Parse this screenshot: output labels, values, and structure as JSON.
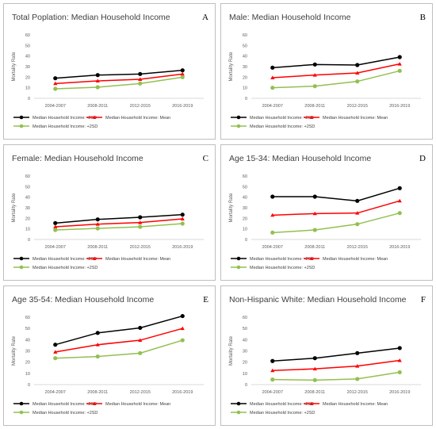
{
  "series_styles": [
    {
      "color": "#000000",
      "marker": "circle"
    },
    {
      "color": "#ff0000",
      "marker": "triangle"
    },
    {
      "color": "#92c050",
      "marker": "circle"
    }
  ],
  "chart_data": [
    {
      "type": "line",
      "letter": "A",
      "title": "Total Poplation: Median Household Income",
      "ylabel": "Mortality Rate",
      "categories": [
        "2004-2007",
        "2008-2011",
        "2012-2015",
        "2016-2019"
      ],
      "ylim": [
        0,
        60
      ],
      "yticks": [
        0,
        10,
        20,
        30,
        40,
        50,
        60
      ],
      "grid": false,
      "series": [
        {
          "name": "Median Household Income: -2SD",
          "values": [
            19,
            22,
            23,
            26.5
          ]
        },
        {
          "name": "Median Household Income: Mean",
          "values": [
            14,
            16.5,
            18,
            23
          ]
        },
        {
          "name": "Median Household Income: +2SD",
          "values": [
            9,
            10.5,
            14,
            20
          ]
        }
      ]
    },
    {
      "type": "line",
      "letter": "B",
      "title": "Male: Median Household Income",
      "ylabel": "Mortality Rate",
      "categories": [
        "2004-2007",
        "2008-2011",
        "2012-2015",
        "2016-2019"
      ],
      "ylim": [
        0,
        60
      ],
      "yticks": [
        0,
        10,
        20,
        30,
        40,
        50,
        60
      ],
      "grid": false,
      "series": [
        {
          "name": "Median Household Income: -2SD",
          "values": [
            29,
            32,
            31.5,
            39
          ]
        },
        {
          "name": "Median Household Income: Mean",
          "values": [
            19.5,
            22,
            24,
            32.5
          ]
        },
        {
          "name": "Median Household Income: +2SD",
          "values": [
            10,
            11.5,
            16,
            26
          ]
        }
      ]
    },
    {
      "type": "line",
      "letter": "C",
      "title": "Female: Median Household Income",
      "ylabel": "Mortality Rate",
      "categories": [
        "2004-2007",
        "2008-2011",
        "2012-2015",
        "2016-2019"
      ],
      "ylim": [
        0,
        60
      ],
      "yticks": [
        0,
        10,
        20,
        30,
        40,
        50,
        60
      ],
      "grid": false,
      "series": [
        {
          "name": "Median Household Income: -2SD",
          "values": [
            15.5,
            19,
            21,
            23.5
          ]
        },
        {
          "name": "Median Household Income: Mean",
          "values": [
            12,
            14.5,
            16,
            19.5
          ]
        },
        {
          "name": "Median Household Income: +2SD",
          "values": [
            9,
            10.5,
            12,
            15
          ]
        }
      ]
    },
    {
      "type": "line",
      "letter": "D",
      "title": "Age 15-34: Median Household Income",
      "ylabel": "Mortality Rate",
      "categories": [
        "2004-2007",
        "2008-2011",
        "2012-2015",
        "2016-2019"
      ],
      "ylim": [
        0,
        60
      ],
      "yticks": [
        0,
        10,
        20,
        30,
        40,
        50,
        60
      ],
      "grid": false,
      "series": [
        {
          "name": "Median Household Income: -2SD",
          "values": [
            40.5,
            40.5,
            36.5,
            48.5
          ]
        },
        {
          "name": "Median Household Income: Mean",
          "values": [
            23,
            24.5,
            25,
            36.5
          ]
        },
        {
          "name": "Median Household Income: +2SD",
          "values": [
            6.5,
            9,
            14.5,
            25
          ]
        }
      ]
    },
    {
      "type": "line",
      "letter": "E",
      "title": "Age 35-54: Median Household Income",
      "ylabel": "Mortality Rate",
      "categories": [
        "2004-2007",
        "2008-2011",
        "2012-2015",
        "2016-2019"
      ],
      "ylim": [
        0,
        60
      ],
      "yticks": [
        0,
        10,
        20,
        30,
        40,
        50,
        60
      ],
      "grid": false,
      "series": [
        {
          "name": "Median Household Income: -2SD",
          "values": [
            35.5,
            46,
            50.5,
            61
          ]
        },
        {
          "name": "Median Household Income: Mean",
          "values": [
            29,
            35.5,
            39.5,
            50
          ]
        },
        {
          "name": "Median Household Income: +2SD",
          "values": [
            23.5,
            25,
            28,
            39.5
          ]
        }
      ]
    },
    {
      "type": "line",
      "letter": "F",
      "title": "Non-Hispanic White: Median Household Income",
      "ylabel": "Mortality Rate",
      "categories": [
        "2004-2007",
        "2008-2011",
        "2012-2015",
        "2016-2019"
      ],
      "ylim": [
        0,
        60
      ],
      "yticks": [
        0,
        10,
        20,
        30,
        40,
        50,
        60
      ],
      "grid": false,
      "series": [
        {
          "name": "Median Household Income: -2SD",
          "values": [
            21,
            23.5,
            28,
            32.5
          ]
        },
        {
          "name": "Median Household Income: Mean",
          "values": [
            12.5,
            14,
            16.5,
            21.5
          ]
        },
        {
          "name": "Median Household Income: +2SD",
          "values": [
            4.5,
            4,
            5,
            11
          ]
        }
      ]
    }
  ]
}
